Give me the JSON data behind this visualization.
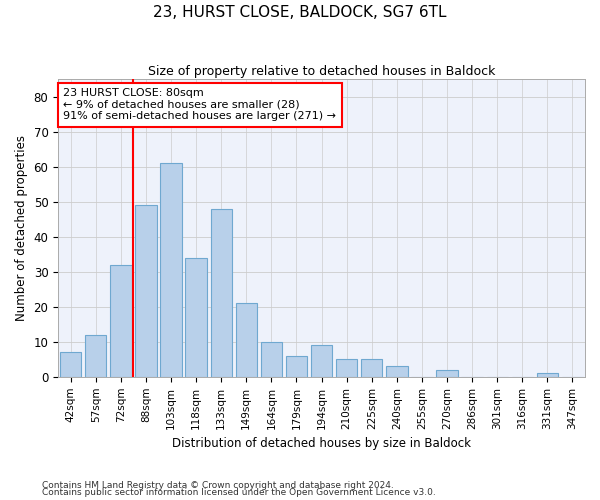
{
  "title": "23, HURST CLOSE, BALDOCK, SG7 6TL",
  "subtitle": "Size of property relative to detached houses in Baldock",
  "xlabel": "Distribution of detached houses by size in Baldock",
  "ylabel": "Number of detached properties",
  "categories": [
    "42sqm",
    "57sqm",
    "72sqm",
    "88sqm",
    "103sqm",
    "118sqm",
    "133sqm",
    "149sqm",
    "164sqm",
    "179sqm",
    "194sqm",
    "210sqm",
    "225sqm",
    "240sqm",
    "255sqm",
    "270sqm",
    "286sqm",
    "301sqm",
    "316sqm",
    "331sqm",
    "347sqm"
  ],
  "values": [
    7,
    12,
    32,
    49,
    61,
    34,
    48,
    21,
    10,
    6,
    9,
    5,
    5,
    3,
    0,
    2,
    0,
    0,
    0,
    1,
    0
  ],
  "bar_color": "#b8d0ea",
  "bar_edge_color": "#6fa8d0",
  "grid_color": "#cccccc",
  "vline_color": "red",
  "vline_x_index": 2.5,
  "annotation_text": "23 HURST CLOSE: 80sqm\n← 9% of detached houses are smaller (28)\n91% of semi-detached houses are larger (271) →",
  "annotation_box_color": "white",
  "annotation_box_edge": "red",
  "ylim": [
    0,
    85
  ],
  "yticks": [
    0,
    10,
    20,
    30,
    40,
    50,
    60,
    70,
    80
  ],
  "footnote1": "Contains HM Land Registry data © Crown copyright and database right 2024.",
  "footnote2": "Contains public sector information licensed under the Open Government Licence v3.0.",
  "bg_color": "#eef2fb"
}
